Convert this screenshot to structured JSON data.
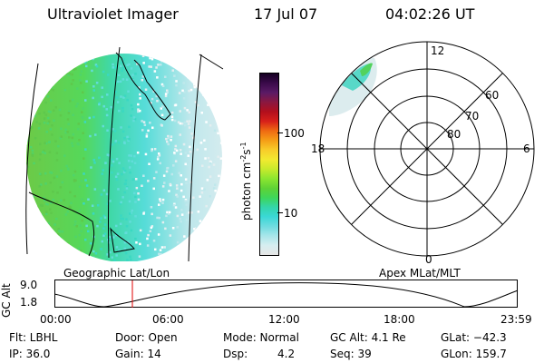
{
  "header": {
    "title": "Ultraviolet Imager",
    "date": "17 Jul 07",
    "time": "04:02:26 UT"
  },
  "colorbar": {
    "label": "photon cm",
    "label_sup1": "-2",
    "label_mid": "s",
    "label_sup2": "-1",
    "ticks": [
      "100",
      "10"
    ],
    "colors": [
      "#150022",
      "#3a0a4a",
      "#5a1a66",
      "#8a1840",
      "#b30f1c",
      "#d7201a",
      "#ef6a12",
      "#f59d16",
      "#f8cc2a",
      "#f2ea30",
      "#c8ea2c",
      "#8ce630",
      "#5fd235",
      "#3ed65a",
      "#34d6aa",
      "#3ad8d6",
      "#6fdce0",
      "#a8e6ea",
      "#d6eef0",
      "#e6e6e6"
    ]
  },
  "geo_panel": {
    "label": "Geographic Lat/Lon"
  },
  "polar_panel": {
    "label": "Apex  MLat/MLT",
    "mlt_labels": [
      "12",
      "18",
      "6",
      "0"
    ],
    "lat_labels": [
      "60",
      "70",
      "80"
    ]
  },
  "timeline": {
    "ylabel": "GC Alt",
    "yticks": [
      "9.0",
      "1.8"
    ],
    "xticks": [
      "00:00",
      "06:00",
      "12:00",
      "18:00",
      "23:59"
    ],
    "marker_hour": 4.04
  },
  "info": {
    "flt": "Flt: LBHL",
    "ip": "IP: 36.0",
    "door": "Door: Open",
    "gain": "Gain: 14",
    "mode": "Mode: Normal",
    "dsp_label": "Dsp:",
    "dsp_value": "4.2",
    "gcalt": "GC Alt: 4.1 Re",
    "seq": "Seq: 39",
    "glat": "GLat: −42.3",
    "glon": "GLon: 159.7"
  }
}
